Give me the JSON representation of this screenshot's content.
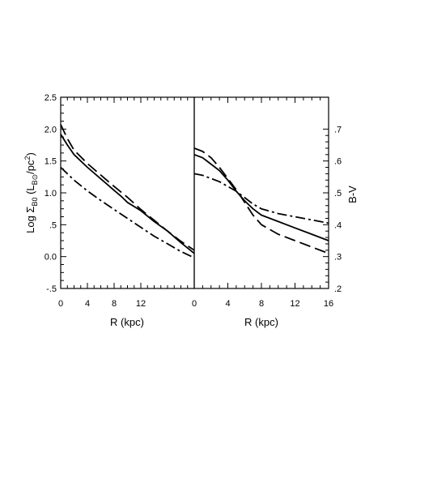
{
  "chart_data": [
    {
      "type": "line",
      "panel": "left",
      "xlabel": "R (kpc)",
      "ylabel_parts": {
        "base": "Log Σ",
        "sub1": "B0",
        "mid": " (L",
        "sub2": "B⊙",
        "end": "/pc",
        "sup": "2",
        "close": ")"
      },
      "xlim": [
        0,
        20
      ],
      "ylim": [
        -0.5,
        2.5
      ],
      "x_ticks": [
        0,
        4,
        8,
        12
      ],
      "x_tick_labels": [
        "0",
        "4",
        "8",
        "12"
      ],
      "y_ticks": [
        -0.5,
        0.0,
        0.5,
        1.0,
        1.5,
        2.0,
        2.5
      ],
      "y_tick_labels": [
        "-.5",
        "0.0",
        ".5",
        "1.0",
        "1.5",
        "2.0",
        "2.5"
      ],
      "series": [
        {
          "style": "solid",
          "x": [
            0,
            1,
            2,
            4,
            6,
            8,
            9,
            10,
            12,
            14,
            16,
            18,
            20
          ],
          "y": [
            1.92,
            1.75,
            1.6,
            1.4,
            1.22,
            1.04,
            0.95,
            0.85,
            0.72,
            0.55,
            0.4,
            0.22,
            0.05
          ]
        },
        {
          "style": "dashed",
          "x": [
            0,
            1,
            2,
            4,
            6,
            8,
            10,
            12,
            14,
            16,
            18,
            20
          ],
          "y": [
            2.07,
            1.85,
            1.67,
            1.46,
            1.28,
            1.1,
            0.93,
            0.74,
            0.57,
            0.4,
            0.24,
            0.1
          ]
        },
        {
          "style": "dashdot",
          "x": [
            0,
            2,
            4,
            6,
            8,
            10,
            12,
            14,
            16,
            18,
            20
          ],
          "y": [
            1.4,
            1.2,
            1.03,
            0.88,
            0.74,
            0.6,
            0.46,
            0.32,
            0.2,
            0.08,
            -0.02
          ]
        }
      ]
    },
    {
      "type": "line",
      "panel": "right",
      "xlabel": "R (kpc)",
      "ylabel": "B-V",
      "xlim": [
        0,
        16
      ],
      "ylim": [
        0.2,
        0.8
      ],
      "x_ticks": [
        0,
        4,
        8,
        12,
        16
      ],
      "x_tick_labels": [
        "0",
        "4",
        "8",
        "12",
        "16"
      ],
      "y_ticks": [
        0.2,
        0.3,
        0.4,
        0.5,
        0.6,
        0.7
      ],
      "y_tick_labels": [
        ".2",
        ".3",
        ".4",
        ".5",
        ".6",
        ".7"
      ],
      "series": [
        {
          "style": "solid",
          "x": [
            0,
            1,
            2,
            3,
            4,
            5,
            6,
            7,
            8,
            10,
            12,
            14,
            16
          ],
          "y": [
            0.62,
            0.61,
            0.59,
            0.57,
            0.54,
            0.505,
            0.475,
            0.45,
            0.43,
            0.41,
            0.39,
            0.37,
            0.35
          ]
        },
        {
          "style": "dashed",
          "x": [
            0,
            1,
            2,
            3,
            4,
            5,
            6,
            7,
            8,
            10,
            12,
            14,
            16
          ],
          "y": [
            0.64,
            0.63,
            0.61,
            0.58,
            0.545,
            0.51,
            0.47,
            0.43,
            0.4,
            0.37,
            0.35,
            0.33,
            0.31
          ]
        },
        {
          "style": "dashdot",
          "x": [
            0,
            1,
            2,
            3,
            4,
            5,
            6,
            7,
            8,
            10,
            12,
            14,
            16
          ],
          "y": [
            0.56,
            0.555,
            0.545,
            0.535,
            0.52,
            0.505,
            0.485,
            0.465,
            0.45,
            0.435,
            0.425,
            0.415,
            0.405
          ]
        }
      ]
    }
  ]
}
